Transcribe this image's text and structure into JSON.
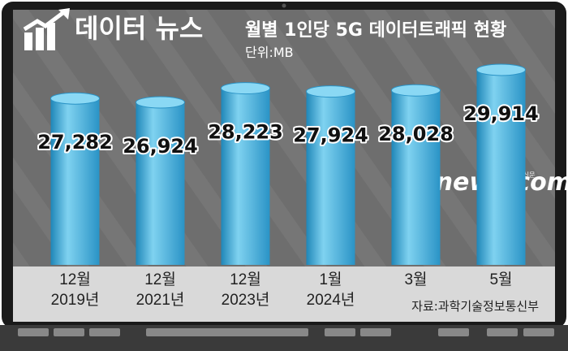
{
  "header": {
    "logo": "데이터 뉴스"
  },
  "watermark": {
    "text": "etnews.com",
    "small": "전자신문"
  },
  "chart_data": {
    "type": "bar",
    "title": "월별 1인당 5G 데이터트래픽 현황",
    "subtitle": "단위:MB",
    "source": "자료:과학기술정보통신부",
    "categories": [
      "12월\n2019년",
      "12월\n2021년",
      "12월\n2023년",
      "1월\n2024년",
      "3월",
      "5월"
    ],
    "values": [
      27282,
      26924,
      28223,
      27924,
      28028,
      29914
    ],
    "value_labels": [
      "27,282",
      "26,924",
      "28,223",
      "27,924",
      "28,028",
      "29,914"
    ],
    "color": "#3aa8d8",
    "ylim": [
      12000,
      32000
    ]
  }
}
